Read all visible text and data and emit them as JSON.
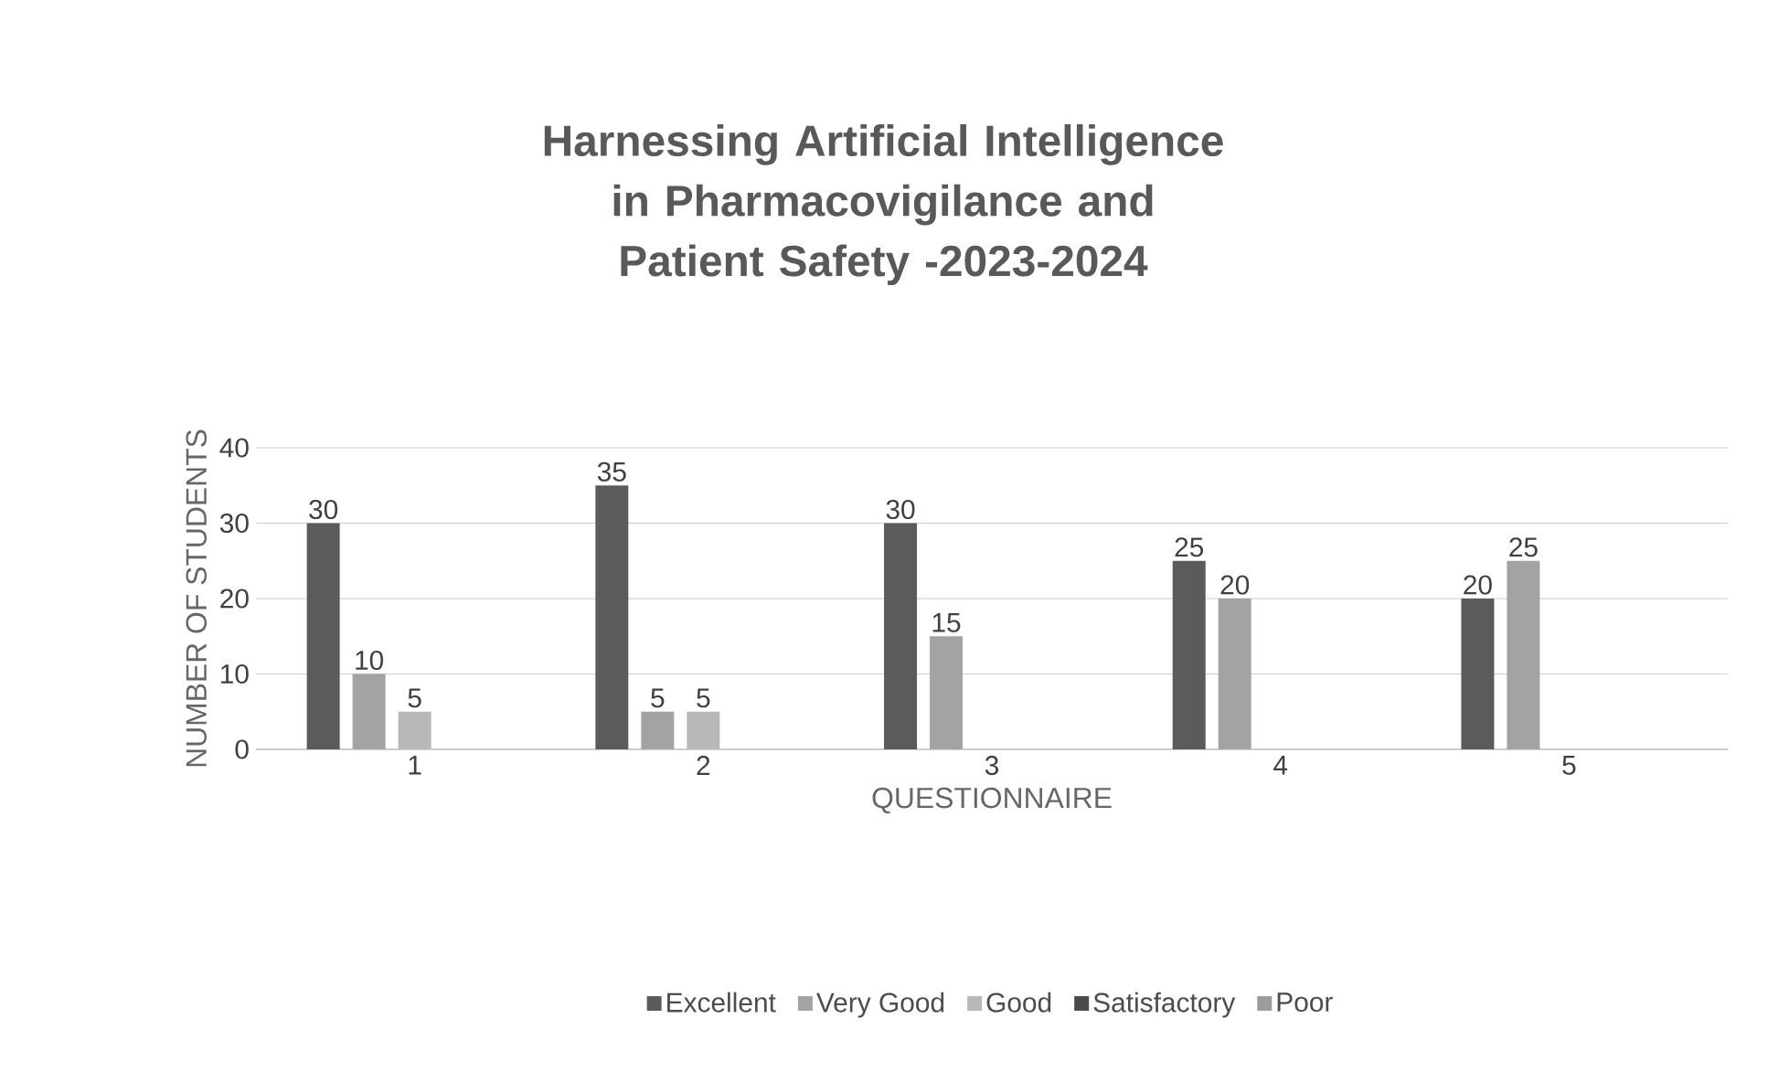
{
  "chart_data": {
    "type": "bar",
    "title": "Harnessing Artificial Intelligence in Pharmacovigilance and Patient Safety -2023-2024",
    "xlabel": "QUESTIONNAIRE",
    "ylabel": "NUMBER OF STUDENTS",
    "categories": [
      "1",
      "2",
      "3",
      "4",
      "5"
    ],
    "series": [
      {
        "name": "Excellent",
        "color": "#5b5b5b",
        "values": [
          30,
          35,
          30,
          25,
          20
        ],
        "value_labels": [
          "30",
          "35",
          "30",
          "25",
          "20"
        ]
      },
      {
        "name": "Very Good",
        "color": "#a3a3a3",
        "values": [
          10,
          5,
          15,
          20,
          25
        ],
        "value_labels": [
          "10",
          "5",
          "15",
          "20",
          "25"
        ]
      },
      {
        "name": "Good",
        "color": "#b8b8b8",
        "values": [
          5,
          5,
          0,
          0,
          0
        ],
        "value_labels": [
          "5",
          "5",
          null,
          null,
          null
        ]
      },
      {
        "name": "Satisfactory",
        "color": "#4a4a4a",
        "values": [
          0,
          0,
          0,
          0,
          0
        ],
        "value_labels": [
          null,
          null,
          null,
          null,
          null
        ]
      },
      {
        "name": "Poor",
        "color": "#9c9c9c",
        "values": [
          0,
          0,
          0,
          0,
          0
        ],
        "value_labels": [
          null,
          null,
          null,
          null,
          null
        ]
      }
    ],
    "ylim": [
      0,
      40
    ],
    "yticks": [
      0,
      10,
      20,
      30,
      40
    ],
    "grid": "y",
    "legend": "bottom"
  }
}
